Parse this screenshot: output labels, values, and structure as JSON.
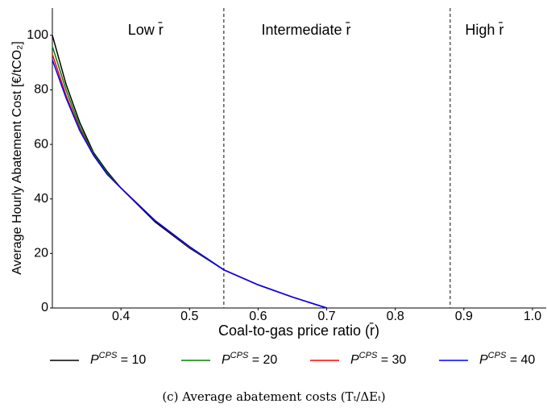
{
  "chart_data": {
    "type": "line",
    "x_label": "Coal-to-gas price ratio (r̄)",
    "y_label": "Average Hourly Abatement Cost [€/tCO₂]",
    "caption": "(c) Average abatement costs (Tₜ/ΔEₜ)",
    "x": [
      0.3,
      0.32,
      0.34,
      0.36,
      0.38,
      0.4,
      0.45,
      0.5,
      0.55,
      0.6,
      0.65,
      0.7
    ],
    "series": [
      {
        "name": "PCPS = 10",
        "color": "#000000",
        "values": [
          100,
          82,
          68,
          57,
          50,
          44,
          31.5,
          22,
          14,
          8.5,
          4,
          0
        ]
      },
      {
        "name": "PCPS = 20",
        "color": "#008000",
        "values": [
          96,
          80,
          66.5,
          56.5,
          49.5,
          44,
          32,
          22.3,
          14,
          8.5,
          4,
          0
        ]
      },
      {
        "name": "PCPS = 30",
        "color": "#ff0000",
        "values": [
          93,
          78,
          65.5,
          56,
          49,
          44,
          32,
          22.4,
          14,
          8.5,
          4,
          0
        ]
      },
      {
        "name": "PCPS = 40",
        "color": "#0000ff",
        "values": [
          91,
          77,
          65,
          56,
          49,
          44,
          32,
          22.5,
          14,
          8.5,
          4,
          0
        ]
      }
    ],
    "vlines": [
      0.55,
      0.88
    ],
    "regions": [
      {
        "label": "Low r̄",
        "x": 0.436
      },
      {
        "label": "Intermediate r̄",
        "x": 0.67
      },
      {
        "label": "High r̄",
        "x": 0.93
      }
    ],
    "xlim": [
      0.3,
      1.02
    ],
    "ylim": [
      0,
      110
    ],
    "xticks": [
      0.4,
      0.5,
      0.6,
      0.7,
      0.8,
      0.9,
      {
        "value": 1.0,
        "label": "1.0"
      }
    ],
    "yticks": [
      0,
      20,
      40,
      60,
      80,
      100
    ],
    "grid": false
  }
}
